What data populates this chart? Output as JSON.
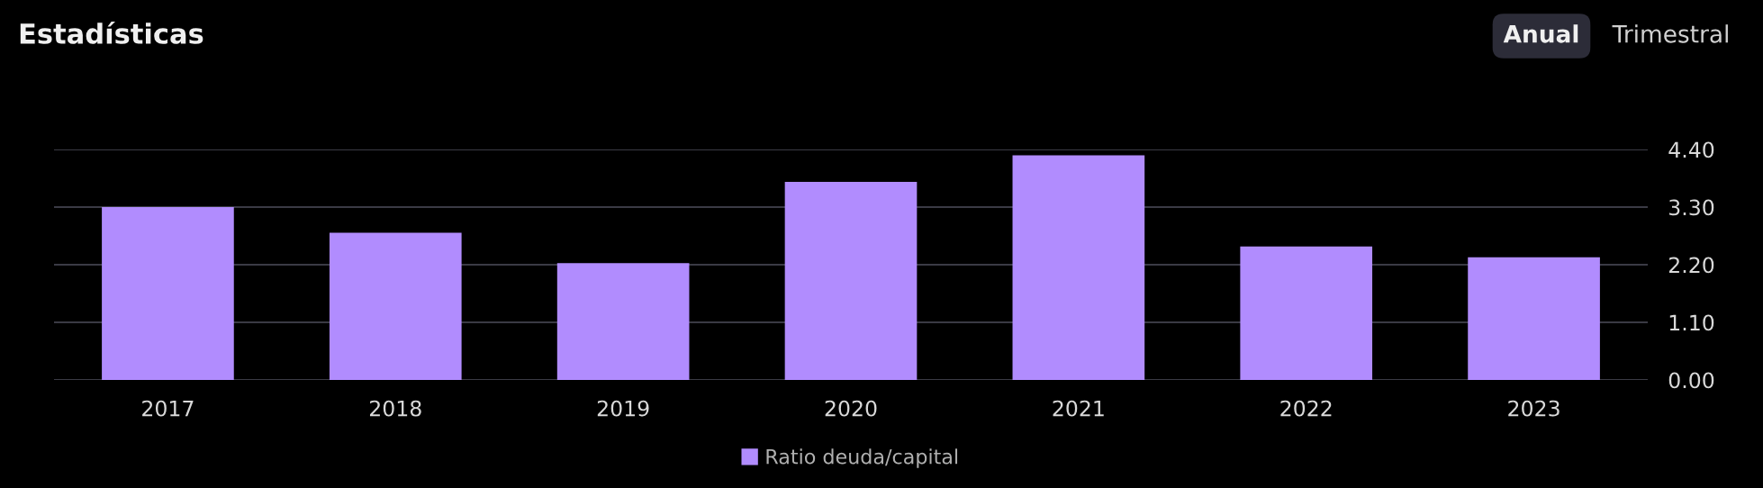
{
  "chart_data": {
    "type": "bar",
    "title": "Estadísticas",
    "annotations": [
      "Anual",
      "Trimestral"
    ],
    "categories": [
      "2017",
      "2018",
      "2019",
      "2020",
      "2021",
      "2022",
      "2023"
    ],
    "series": [
      {
        "name": "Ratio deuda/capital",
        "color": "#b18cfe",
        "values": [
          3.3,
          2.81,
          2.23,
          3.78,
          4.29,
          2.55,
          2.34
        ]
      }
    ],
    "ylim": [
      0,
      4.4
    ],
    "yticks": [
      {
        "value": 0,
        "label": "0.00"
      },
      {
        "value": 1.1,
        "label": "1.10"
      },
      {
        "value": 2.2,
        "label": "2.20"
      },
      {
        "value": 3.3,
        "label": "3.30"
      },
      {
        "value": 4.4,
        "label": "4.40"
      }
    ],
    "grid": "y",
    "legend": "bottom"
  }
}
